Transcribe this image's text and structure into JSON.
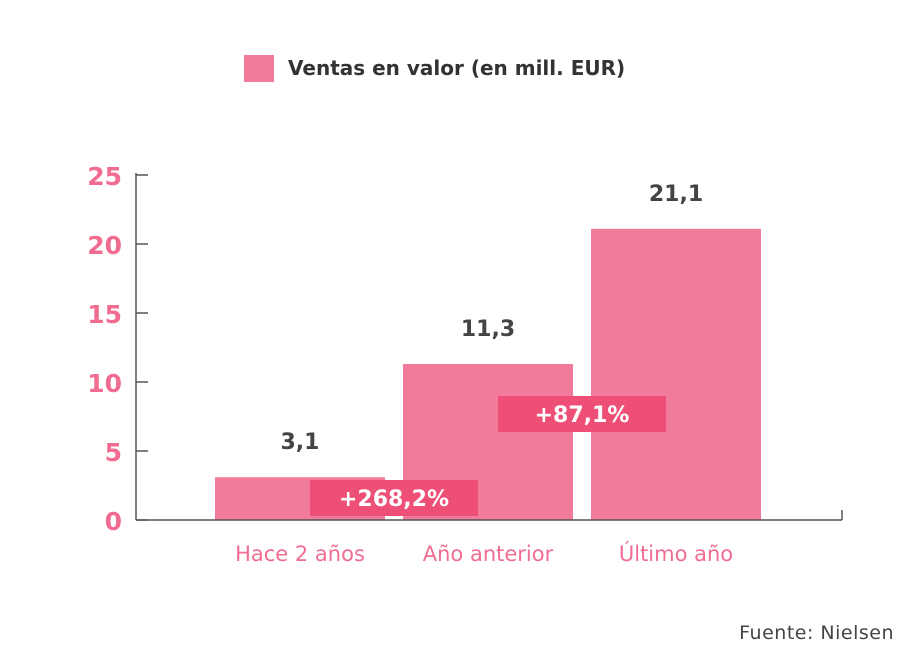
{
  "chart_data": {
    "type": "bar",
    "categories": [
      "Hace 2 años",
      "Año anterior",
      "Último año"
    ],
    "series": [
      {
        "name": "Ventas en valor (en mill. EUR)",
        "values": [
          3.1,
          11.3,
          21.1
        ]
      }
    ],
    "data_labels": [
      "3,1",
      "11,3",
      "21,1"
    ],
    "growth_labels": [
      "+268,2%",
      "+87,1%"
    ],
    "ylim": [
      0,
      25
    ],
    "yticks": [
      0,
      5,
      10,
      15,
      20,
      25
    ],
    "ytick_labels": [
      "0",
      "5",
      "10",
      "15",
      "20",
      "25"
    ],
    "legend_position": "top-center",
    "grid": false,
    "source": "Fuente: Nielsen",
    "colors": {
      "bar": "#f27a9b",
      "growth_box": "#ee4f76",
      "tick_label": "#f06c91",
      "category_label": "#f06c91",
      "value_label": "#444444",
      "axis": "#555555"
    }
  }
}
